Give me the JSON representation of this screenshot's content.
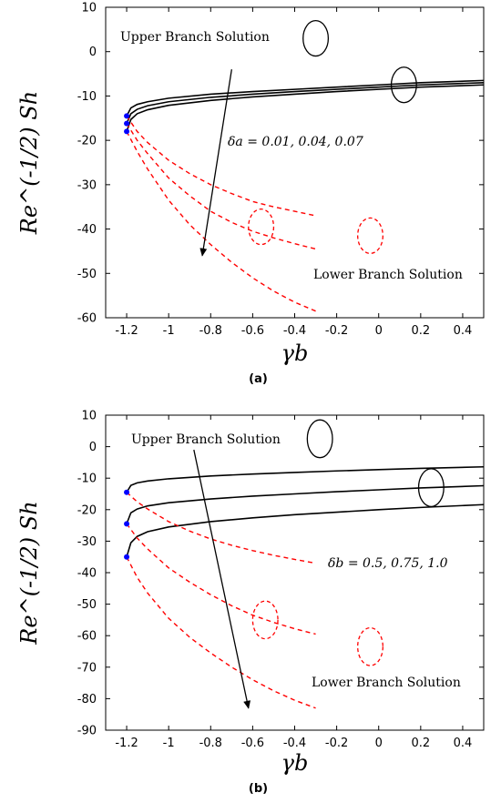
{
  "chart_data": [
    {
      "type": "line",
      "caption": "(a)",
      "xlabel": "γb",
      "ylabel": "Re^(-1/2) Sh",
      "xlim": [
        -1.3,
        0.5
      ],
      "ylim": [
        -60,
        10
      ],
      "xticks": [
        -1.2,
        -1,
        -0.8,
        -0.6,
        -0.4,
        -0.2,
        0,
        0.2,
        0.4
      ],
      "xtick_labels": [
        "-1.2",
        "-1",
        "-0.8",
        "-0.6",
        "-0.4",
        "-0.2",
        "0",
        "0.2",
        "0.4"
      ],
      "yticks": [
        10,
        0,
        -10,
        -20,
        -30,
        -40,
        -50,
        -60
      ],
      "ytick_labels": [
        "10",
        "0",
        "-10",
        "-20",
        "-30",
        "-40",
        "-50",
        "-60"
      ],
      "annotations": {
        "upper": "Upper Branch Solution",
        "lower": "Lower Branch Solution",
        "param": "δa = 0.01, 0.04, 0.07"
      },
      "upper_branch": [
        {
          "x": [
            -1.2,
            -1.18,
            -1.15,
            -1.1,
            -1.0,
            -0.8,
            -0.6,
            -0.4,
            -0.2,
            0.0,
            0.2,
            0.5
          ],
          "y": [
            -14.5,
            -12.7,
            -11.9,
            -11.3,
            -10.5,
            -9.6,
            -9.0,
            -8.5,
            -8.0,
            -7.5,
            -7.0,
            -6.5
          ]
        },
        {
          "x": [
            -1.2,
            -1.18,
            -1.15,
            -1.1,
            -1.0,
            -0.8,
            -0.6,
            -0.4,
            -0.2,
            0.0,
            0.2,
            0.5
          ],
          "y": [
            -16.2,
            -14.0,
            -13.0,
            -12.2,
            -11.3,
            -10.3,
            -9.6,
            -9.0,
            -8.5,
            -8.0,
            -7.5,
            -7.0
          ]
        },
        {
          "x": [
            -1.2,
            -1.18,
            -1.15,
            -1.1,
            -1.0,
            -0.8,
            -0.6,
            -0.4,
            -0.2,
            0.0,
            0.2,
            0.5
          ],
          "y": [
            -18.0,
            -15.3,
            -14.0,
            -13.1,
            -12.1,
            -11.0,
            -10.2,
            -9.6,
            -9.0,
            -8.5,
            -8.0,
            -7.5
          ]
        }
      ],
      "lower_branch": [
        {
          "x": [
            -1.2,
            -1.15,
            -1.1,
            -1.0,
            -0.9,
            -0.8,
            -0.7,
            -0.6,
            -0.5,
            -0.4,
            -0.3
          ],
          "y": [
            -14.5,
            -18.0,
            -20.5,
            -24.5,
            -27.5,
            -30.0,
            -32.0,
            -33.8,
            -35.0,
            -36.0,
            -37.0
          ]
        },
        {
          "x": [
            -1.2,
            -1.15,
            -1.1,
            -1.0,
            -0.9,
            -0.8,
            -0.7,
            -0.6,
            -0.5,
            -0.4,
            -0.3
          ],
          "y": [
            -16.2,
            -20.0,
            -23.0,
            -28.5,
            -32.5,
            -36.0,
            -38.5,
            -40.5,
            -42.0,
            -43.3,
            -44.5
          ]
        },
        {
          "x": [
            -1.2,
            -1.15,
            -1.1,
            -1.0,
            -0.9,
            -0.8,
            -0.7,
            -0.6,
            -0.5,
            -0.4,
            -0.3
          ],
          "y": [
            -18.0,
            -22.5,
            -26.5,
            -33.5,
            -39.0,
            -43.5,
            -47.5,
            -51.0,
            -54.0,
            -56.5,
            -58.5
          ]
        }
      ],
      "critical_points": {
        "x": [
          -1.2,
          -1.2,
          -1.2
        ],
        "y": [
          -14.5,
          -16.2,
          -18.0
        ]
      },
      "arrow": {
        "x1": -0.7,
        "y1": -4,
        "x2": -0.84,
        "y2": -46
      },
      "circles": [
        {
          "style": "solid",
          "cx": -0.3,
          "cy": 3,
          "rx": 0.06,
          "ry": 4
        },
        {
          "style": "solid",
          "cx": 0.12,
          "cy": -7.5,
          "rx": 0.06,
          "ry": 4
        },
        {
          "style": "dashed",
          "cx": -0.56,
          "cy": -39.5,
          "rx": 0.06,
          "ry": 4
        },
        {
          "style": "dashed",
          "cx": -0.04,
          "cy": -41.5,
          "rx": 0.06,
          "ry": 4
        }
      ],
      "colors": {
        "upper": "#000000",
        "lower": "#ff0000",
        "points": "#0000ff"
      }
    },
    {
      "type": "line",
      "caption": "(b)",
      "xlabel": "γb",
      "ylabel": "Re^(-1/2) Sh",
      "xlim": [
        -1.3,
        0.5
      ],
      "ylim": [
        -90,
        10
      ],
      "xticks": [
        -1.2,
        -1,
        -0.8,
        -0.6,
        -0.4,
        -0.2,
        0,
        0.2,
        0.4
      ],
      "xtick_labels": [
        "-1.2",
        "-1",
        "-0.8",
        "-0.6",
        "-0.4",
        "-0.2",
        "0",
        "0.2",
        "0.4"
      ],
      "yticks": [
        10,
        0,
        -10,
        -20,
        -30,
        -40,
        -50,
        -60,
        -70,
        -80,
        -90
      ],
      "ytick_labels": [
        "10",
        "0",
        "-10",
        "-20",
        "-30",
        "-40",
        "-50",
        "-60",
        "-70",
        "-80",
        "-90"
      ],
      "annotations": {
        "upper": "Upper Branch Solution",
        "lower": "Lower Branch Solution",
        "param": "δb = 0.5, 0.75, 1.0"
      },
      "upper_branch": [
        {
          "x": [
            -1.2,
            -1.18,
            -1.15,
            -1.1,
            -1.0,
            -0.8,
            -0.6,
            -0.4,
            -0.2,
            0.0,
            0.2,
            0.5
          ],
          "y": [
            -14.5,
            -12.3,
            -11.5,
            -10.9,
            -10.2,
            -9.3,
            -8.7,
            -8.2,
            -7.7,
            -7.3,
            -6.9,
            -6.4
          ]
        },
        {
          "x": [
            -1.2,
            -1.18,
            -1.15,
            -1.1,
            -1.0,
            -0.8,
            -0.6,
            -0.4,
            -0.2,
            0.0,
            0.2,
            0.5
          ],
          "y": [
            -24.5,
            -21.0,
            -19.8,
            -18.8,
            -17.8,
            -16.6,
            -15.7,
            -15.0,
            -14.3,
            -13.7,
            -13.1,
            -12.4
          ]
        },
        {
          "x": [
            -1.2,
            -1.18,
            -1.15,
            -1.1,
            -1.0,
            -0.8,
            -0.6,
            -0.4,
            -0.2,
            0.0,
            0.2,
            0.5
          ],
          "y": [
            -35.0,
            -30.5,
            -28.5,
            -27.0,
            -25.5,
            -23.8,
            -22.6,
            -21.6,
            -20.8,
            -20.0,
            -19.3,
            -18.4
          ]
        }
      ],
      "lower_branch": [
        {
          "x": [
            -1.2,
            -1.15,
            -1.1,
            -1.0,
            -0.9,
            -0.8,
            -0.7,
            -0.6,
            -0.5,
            -0.4,
            -0.3
          ],
          "y": [
            -14.5,
            -17.5,
            -19.8,
            -23.8,
            -26.8,
            -29.3,
            -31.3,
            -33.0,
            -34.5,
            -35.8,
            -37.0
          ]
        },
        {
          "x": [
            -1.2,
            -1.15,
            -1.1,
            -1.0,
            -0.9,
            -0.8,
            -0.7,
            -0.6,
            -0.5,
            -0.4,
            -0.3
          ],
          "y": [
            -24.5,
            -29.0,
            -32.5,
            -38.5,
            -43.0,
            -47.0,
            -50.5,
            -53.5,
            -55.8,
            -57.8,
            -59.5
          ]
        },
        {
          "x": [
            -1.2,
            -1.15,
            -1.1,
            -1.0,
            -0.9,
            -0.8,
            -0.7,
            -0.6,
            -0.5,
            -0.4,
            -0.3
          ],
          "y": [
            -35.0,
            -41.5,
            -46.5,
            -54.5,
            -60.5,
            -65.5,
            -70.0,
            -74.0,
            -77.5,
            -80.5,
            -83.0
          ]
        }
      ],
      "critical_points": {
        "x": [
          -1.2,
          -1.2,
          -1.2
        ],
        "y": [
          -14.5,
          -24.5,
          -35.0
        ]
      },
      "arrow": {
        "x1": -0.88,
        "y1": -1,
        "x2": -0.62,
        "y2": -83
      },
      "circles": [
        {
          "style": "solid",
          "cx": -0.28,
          "cy": 2.5,
          "rx": 0.06,
          "ry": 6
        },
        {
          "style": "solid",
          "cx": 0.25,
          "cy": -13,
          "rx": 0.06,
          "ry": 6
        },
        {
          "style": "dashed",
          "cx": -0.54,
          "cy": -55,
          "rx": 0.06,
          "ry": 6
        },
        {
          "style": "dashed",
          "cx": -0.04,
          "cy": -63.5,
          "rx": 0.06,
          "ry": 6
        }
      ],
      "colors": {
        "upper": "#000000",
        "lower": "#ff0000",
        "points": "#0000ff"
      }
    }
  ]
}
